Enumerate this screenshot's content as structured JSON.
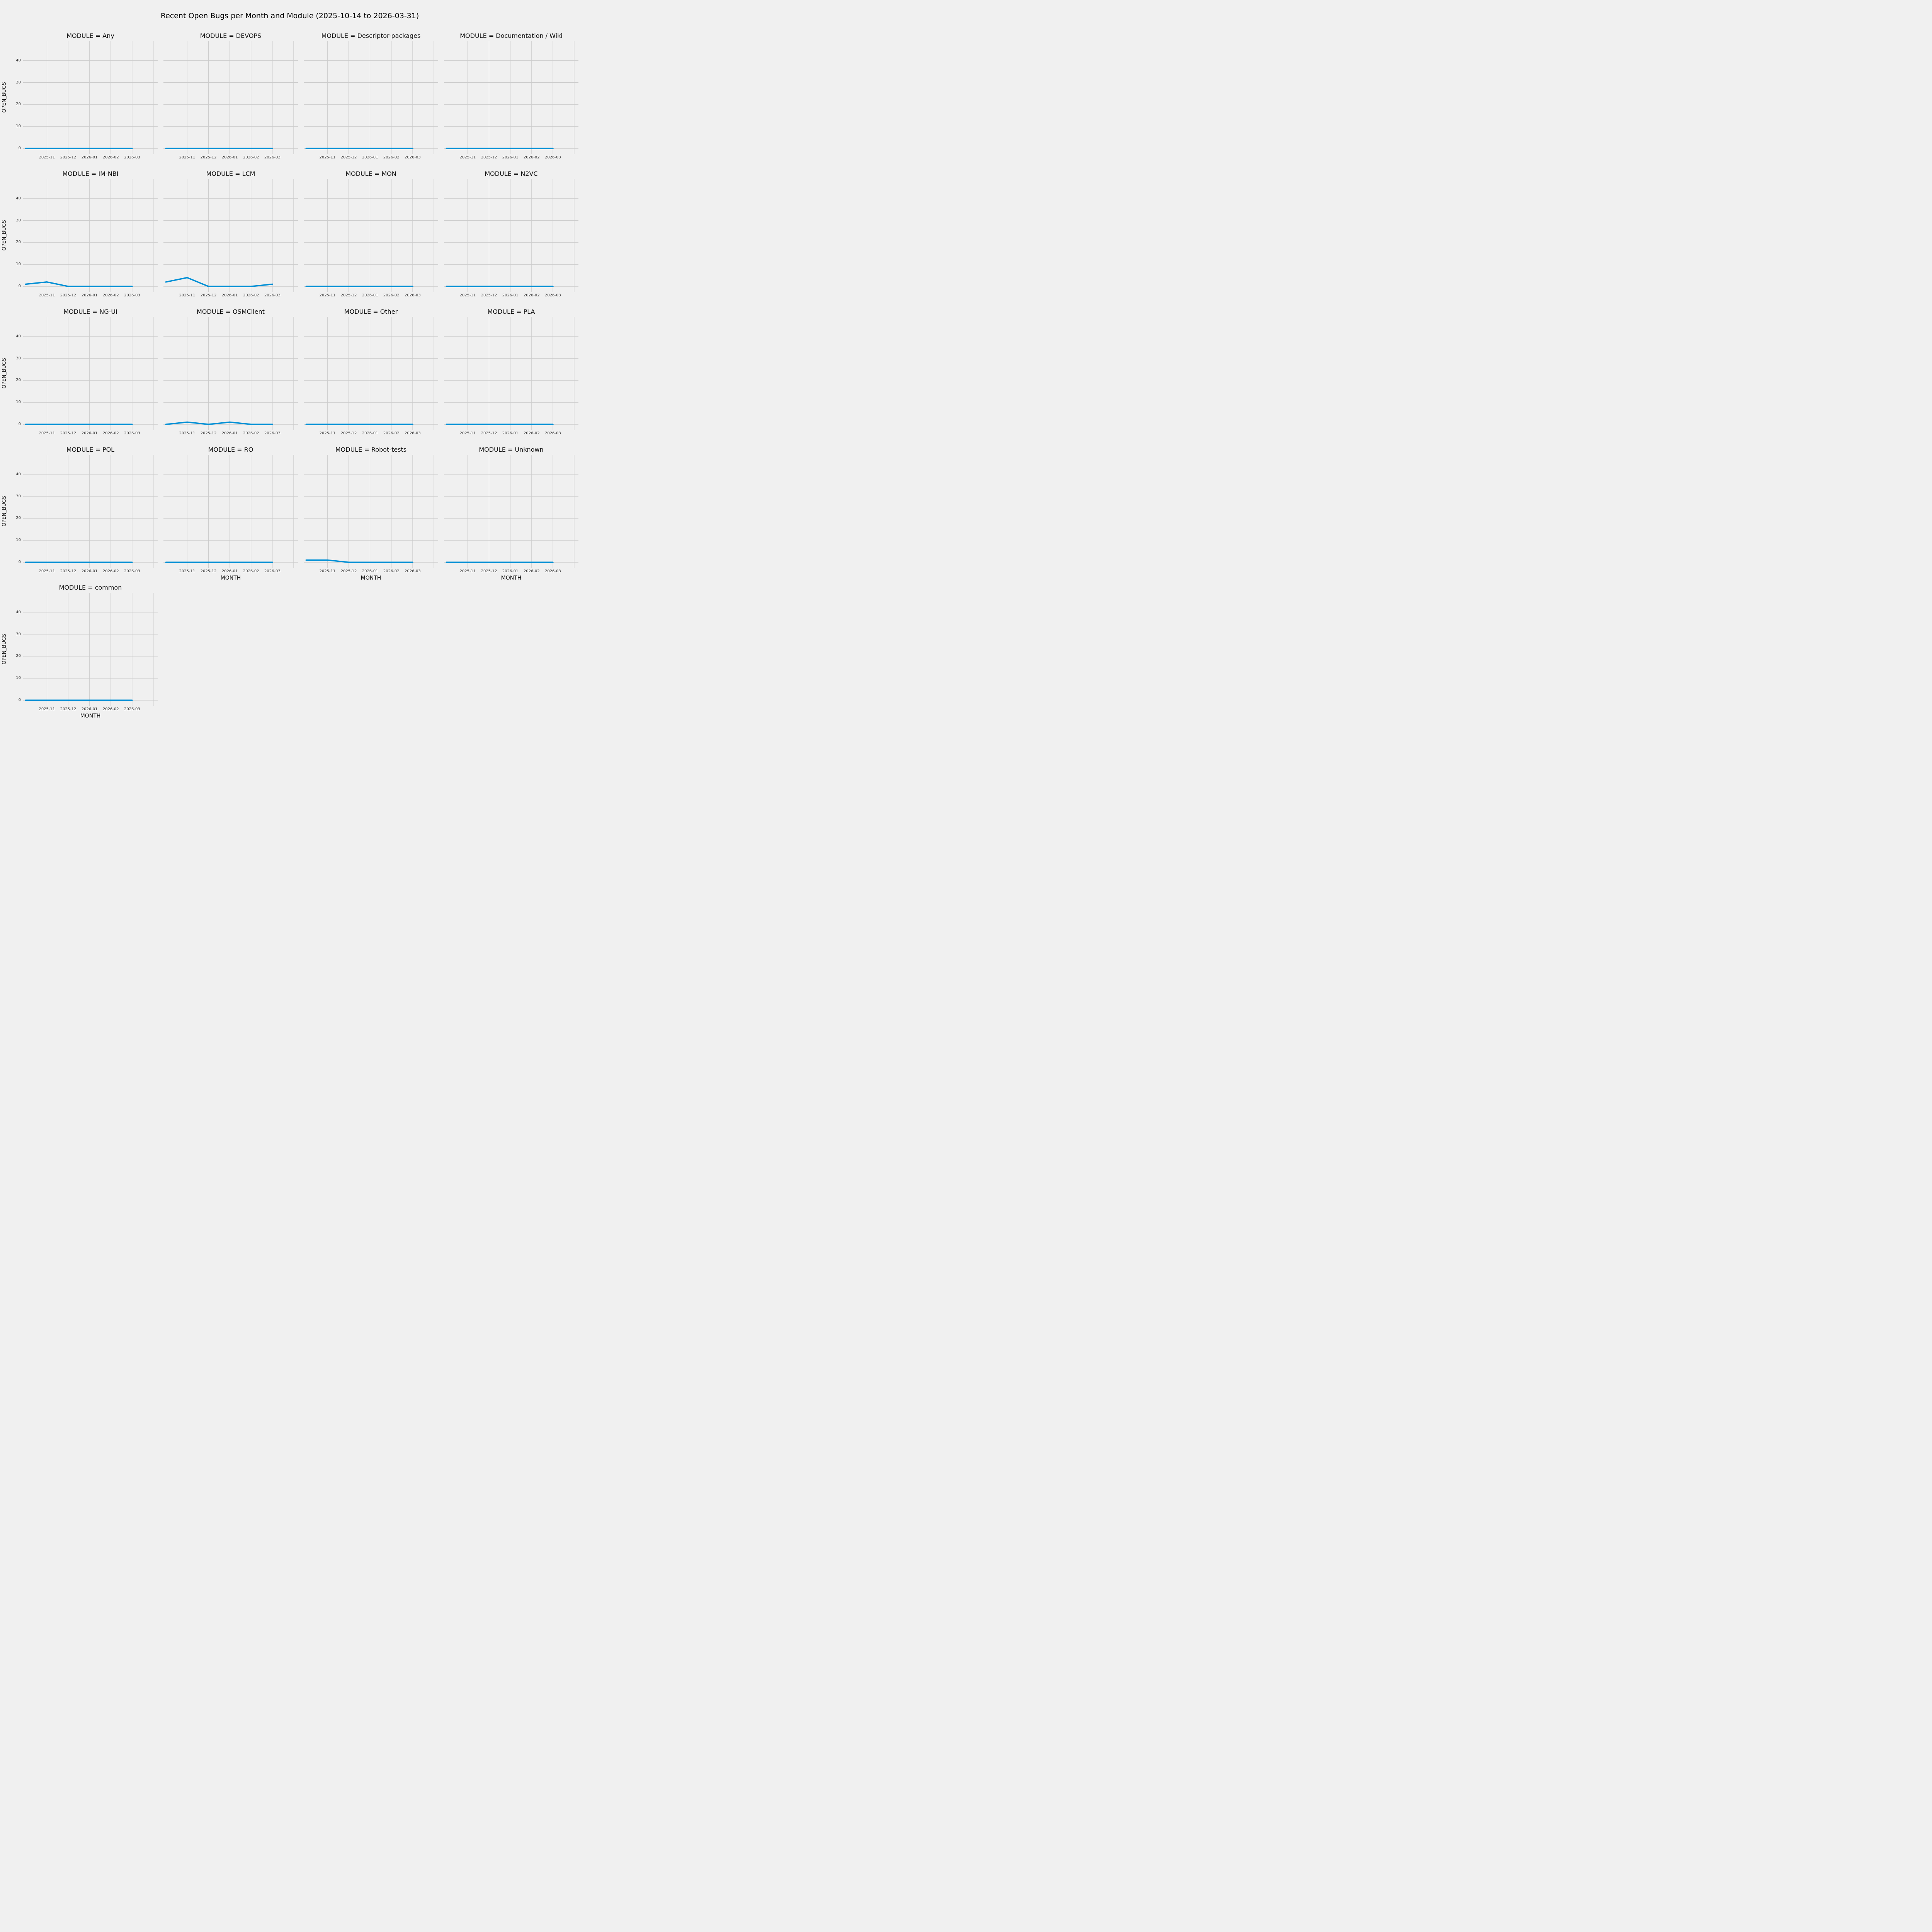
{
  "figure": {
    "title": "Recent Open Bugs per Month and Module (2025-10-14 to 2026-03-31)",
    "background_color": "#f0f0f0"
  },
  "chart_data": {
    "type": "line",
    "title": "Recent Open Bugs per Month and Module (2025-10-14 to 2026-03-31)",
    "facet_variable": "MODULE",
    "xlabel": "MONTH",
    "ylabel": "OPEN_BUGS",
    "x": [
      "2025-10",
      "2025-11",
      "2025-12",
      "2026-01",
      "2026-02",
      "2026-03"
    ],
    "x_tick_labels": [
      "2025-11",
      "2025-12",
      "2026-01",
      "2026-02",
      "2026-03"
    ],
    "y_ticks": [
      0,
      10,
      20,
      30,
      40
    ],
    "ylim": [
      -2.6,
      48.9
    ],
    "grid": true,
    "legend": "none",
    "line_color": "#008fd5",
    "grid_color": "#cbcbcb",
    "series": [
      {
        "name": "Any",
        "values": [
          0,
          0,
          0,
          0,
          0,
          0
        ]
      },
      {
        "name": "DEVOPS",
        "values": [
          0,
          0,
          0,
          0,
          0,
          0
        ]
      },
      {
        "name": "Descriptor-packages",
        "values": [
          0,
          0,
          0,
          0,
          0,
          0
        ]
      },
      {
        "name": "Documentation / Wiki",
        "values": [
          0,
          0,
          0,
          0,
          0,
          0
        ]
      },
      {
        "name": "IM-NBI",
        "values": [
          1,
          2,
          0,
          0,
          0,
          0
        ]
      },
      {
        "name": "LCM",
        "values": [
          2,
          4,
          0,
          0,
          0,
          1
        ]
      },
      {
        "name": "MON",
        "values": [
          0,
          0,
          0,
          0,
          0,
          0
        ]
      },
      {
        "name": "N2VC",
        "values": [
          0,
          0,
          0,
          0,
          0,
          0
        ]
      },
      {
        "name": "NG-UI",
        "values": [
          0,
          0,
          0,
          0,
          0,
          0
        ]
      },
      {
        "name": "OSMClient",
        "values": [
          0,
          1,
          0,
          1,
          0,
          0
        ]
      },
      {
        "name": "Other",
        "values": [
          0,
          0,
          0,
          0,
          0,
          0
        ]
      },
      {
        "name": "PLA",
        "values": [
          0,
          0,
          0,
          0,
          0,
          0
        ]
      },
      {
        "name": "POL",
        "values": [
          0,
          0,
          0,
          0,
          0,
          0
        ]
      },
      {
        "name": "RO",
        "values": [
          0,
          0,
          0,
          0,
          0,
          0
        ]
      },
      {
        "name": "Robot-tests",
        "values": [
          1,
          1,
          0,
          0,
          0,
          0
        ]
      },
      {
        "name": "Unknown",
        "values": [
          0,
          0,
          0,
          0,
          0,
          0
        ]
      },
      {
        "name": "common",
        "values": [
          0,
          0,
          0,
          0,
          0,
          0
        ]
      }
    ],
    "facets_with_xlabel": [
      13,
      14,
      15,
      16
    ],
    "facets_with_ylabel": [
      0,
      4,
      8,
      12,
      16
    ]
  }
}
